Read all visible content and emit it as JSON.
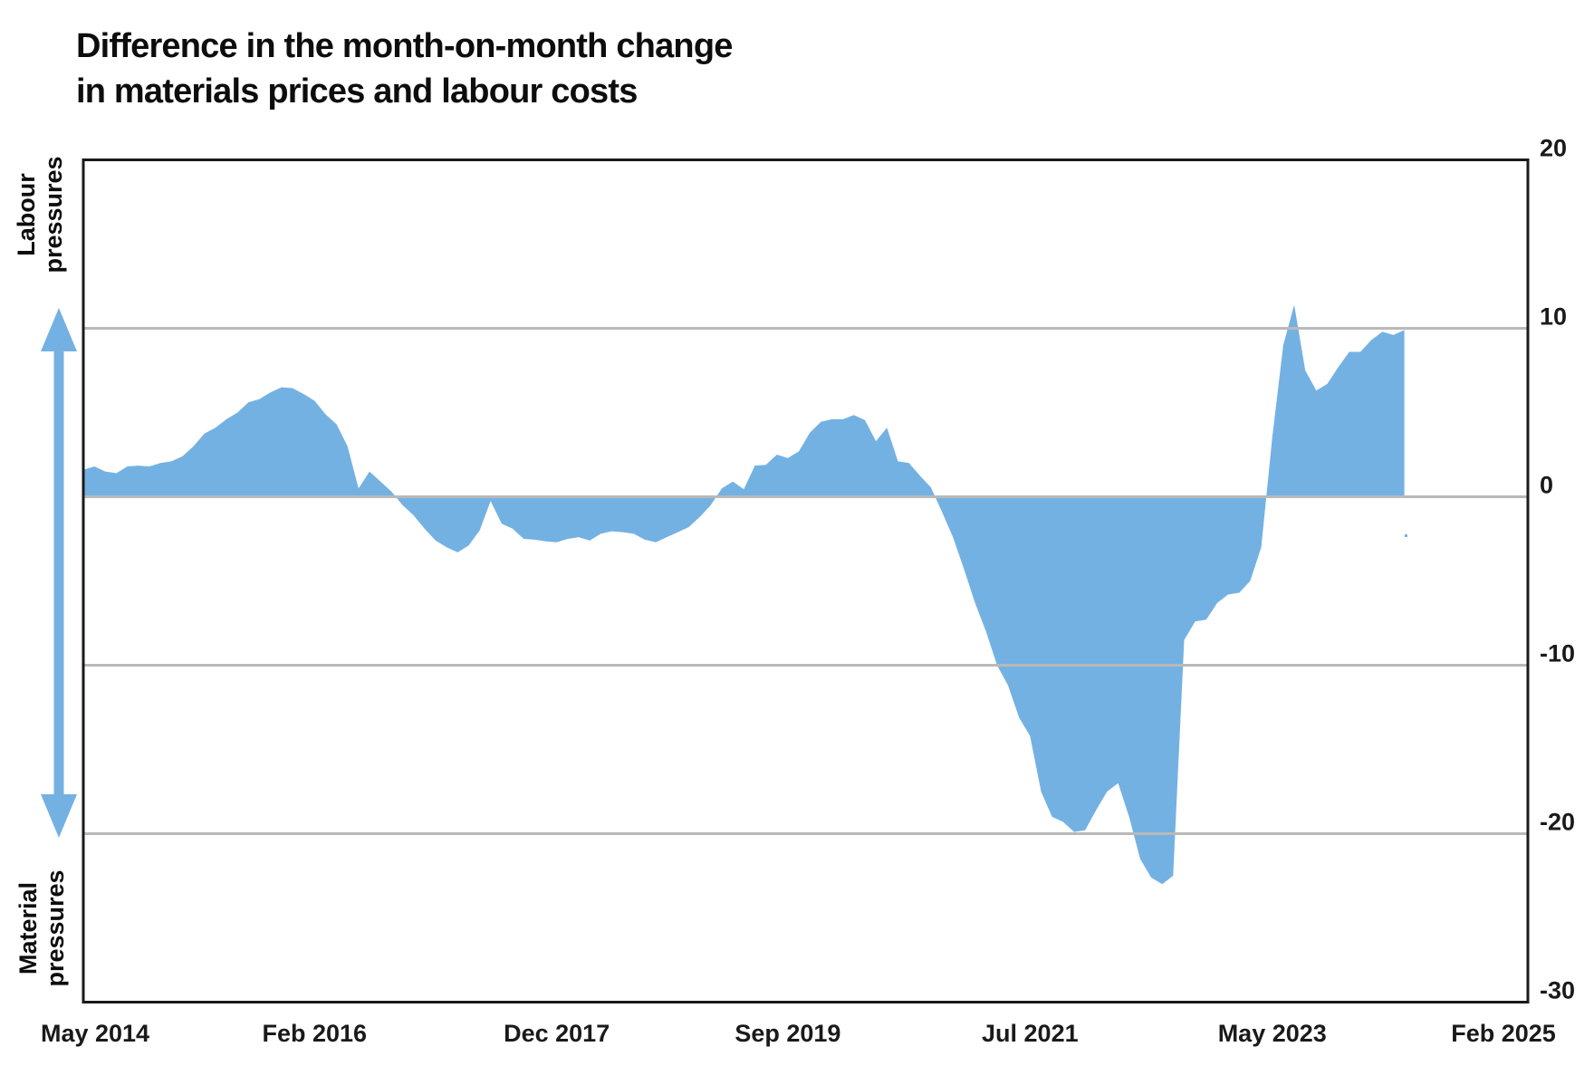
{
  "title": {
    "line1": "Difference in the month-on-month change",
    "line2": "in materials prices and labour costs"
  },
  "annotations": {
    "top_left_axis_label": "Labour pressures",
    "bottom_left_axis_label": "Material pressures",
    "arrow_icon": "double-headed-vertical-arrow"
  },
  "colors": {
    "area": "#74b1e3",
    "arrow": "#74b1e3",
    "gridline": "#b9b9b9",
    "axis": "#1a1a1a",
    "text": "#0d0d0d",
    "background": "#ffffff"
  },
  "chart_data": {
    "type": "area",
    "title": "Difference in the month-on-month change in materials prices and labour costs",
    "xlabel": "",
    "ylabel": "",
    "x_start": "2014-05",
    "x_end": "2024-05",
    "x_frequency": "monthly",
    "values": [
      1.6,
      1.8,
      1.5,
      1.4,
      1.8,
      1.85,
      1.8,
      2.0,
      2.1,
      2.4,
      3.0,
      3.75,
      4.1,
      4.6,
      5.0,
      5.6,
      5.8,
      6.2,
      6.5,
      6.45,
      6.1,
      5.7,
      4.9,
      4.3,
      3.0,
      0.5,
      1.5,
      0.9,
      0.3,
      -0.5,
      -1.1,
      -1.9,
      -2.6,
      -3.0,
      -3.3,
      -2.9,
      -2.0,
      -0.25,
      -1.6,
      -1.9,
      -2.5,
      -2.55,
      -2.65,
      -2.7,
      -2.5,
      -2.4,
      -2.6,
      -2.2,
      -2.05,
      -2.1,
      -2.2,
      -2.55,
      -2.7,
      -2.4,
      -2.1,
      -1.8,
      -1.2,
      -0.5,
      0.5,
      0.9,
      0.45,
      1.85,
      1.9,
      2.5,
      2.3,
      2.7,
      3.8,
      4.45,
      4.6,
      4.6,
      4.85,
      4.55,
      3.3,
      4.1,
      2.1,
      2.0,
      1.25,
      0.55,
      -0.9,
      -2.4,
      -4.3,
      -6.3,
      -8.0,
      -10.0,
      -11.2,
      -13.1,
      -14.2,
      -17.5,
      -19.0,
      -19.3,
      -19.9,
      -19.8,
      -18.6,
      -17.5,
      -17.0,
      -19.0,
      -21.5,
      -22.6,
      -23.0,
      -22.5,
      -8.5,
      -7.4,
      -7.3,
      -6.3,
      -5.8,
      -5.7,
      -5.0,
      -3.0,
      3.5,
      9.0,
      11.4,
      7.5,
      6.3,
      6.7,
      7.7,
      8.6,
      8.6,
      9.3,
      9.8,
      9.6,
      9.9
    ],
    "x_ticks": [
      {
        "label": "May 2014",
        "month_offset": 0
      },
      {
        "label": "Feb 2016",
        "month_offset": 21
      },
      {
        "label": "Dec 2017",
        "month_offset": 43
      },
      {
        "label": "Sep 2019",
        "month_offset": 64
      },
      {
        "label": "Jul 2021",
        "month_offset": 86
      },
      {
        "label": "May 2023",
        "month_offset": 108
      },
      {
        "label": "Feb 2025",
        "month_offset": 129
      }
    ],
    "y_ticks": [
      20,
      10,
      0,
      -10,
      -20,
      -30
    ],
    "ylim": [
      -30,
      20
    ],
    "xlim_months": [
      0,
      129
    ],
    "gridlines_at": [
      10,
      0,
      -10,
      -20
    ],
    "grid": true,
    "legend_position": "none",
    "positive_region_meaning": "Labour pressures",
    "negative_region_meaning": "Material pressures"
  }
}
